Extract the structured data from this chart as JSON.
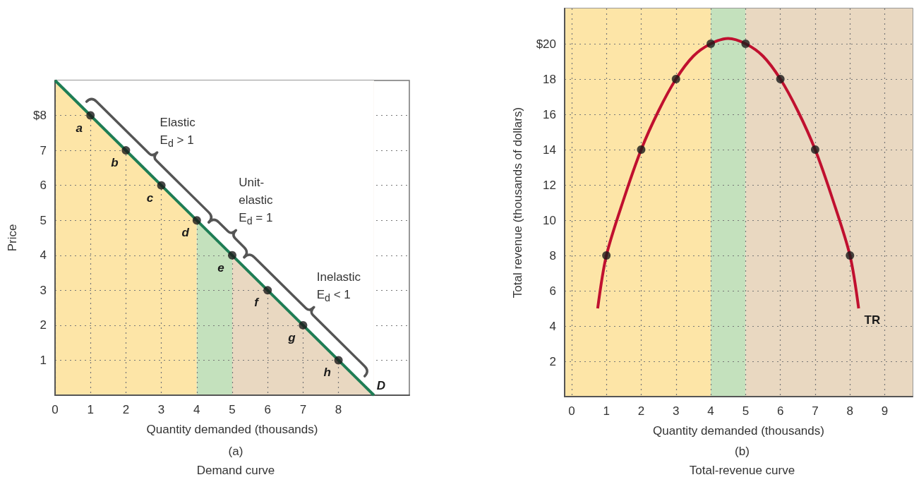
{
  "chart_data": [
    {
      "type": "area",
      "title": "(a)",
      "subtitle": "Demand curve",
      "xlabel": "Quantity demanded (thousands)",
      "ylabel": "Price",
      "xlim": [
        0,
        10
      ],
      "ylim": [
        0,
        9
      ],
      "xticks": [
        0,
        1,
        2,
        3,
        4,
        5,
        6,
        7,
        8
      ],
      "yticks": [
        1,
        2,
        3,
        4,
        5,
        6,
        7,
        {
          "value": 8,
          "label": "$8"
        }
      ],
      "grid": true,
      "series": [
        {
          "name": "D",
          "color": "#1e7d55",
          "x": [
            0,
            9
          ],
          "values": [
            9,
            0
          ]
        },
        {
          "type": "scatter",
          "color": "#1a1a1a",
          "x": [
            1,
            2,
            3,
            4,
            5,
            6,
            7,
            8
          ],
          "values": [
            8,
            7,
            6,
            5,
            4,
            3,
            2,
            1
          ]
        }
      ],
      "bands": [
        {
          "axis": "x",
          "from": 0,
          "to": 4,
          "label": "Elastic\nE$_{d}$ > 1",
          "color": "#fde5a7"
        },
        {
          "axis": "x",
          "from": 4,
          "to": 5,
          "label": "Unit-\nelastic\nE$_{d}$ = 1",
          "color": "#c4e1bd"
        },
        {
          "axis": "x",
          "from": 5,
          "to": 9,
          "label": "Inelastic\nE$_{d}$ < 1",
          "color": "#e9d8c1"
        }
      ],
      "annotations": [
        {
          "text": "a",
          "x": 1,
          "y": 8
        },
        {
          "text": "b",
          "x": 2,
          "y": 7
        },
        {
          "text": "c",
          "x": 3,
          "y": 6
        },
        {
          "text": "d",
          "x": 4,
          "y": 5
        },
        {
          "text": "e",
          "x": 5,
          "y": 4
        },
        {
          "text": "f",
          "x": 6,
          "y": 3
        },
        {
          "text": "g",
          "x": 7,
          "y": 2
        },
        {
          "text": "h",
          "x": 8,
          "y": 1
        }
      ]
    },
    {
      "type": "line",
      "title": "(b)",
      "subtitle": "Total-revenue curve",
      "xlabel": "Quantity demanded (thousands)",
      "ylabel": "Total revenue (thousands of dollars)",
      "xlim": [
        -0.2,
        9.8
      ],
      "ylim": [
        0,
        22
      ],
      "xticks": [
        0,
        1,
        2,
        3,
        4,
        5,
        6,
        7,
        8,
        9
      ],
      "yticks": [
        2,
        4,
        6,
        8,
        10,
        12,
        14,
        16,
        18,
        {
          "value": 20,
          "label": "$20"
        }
      ],
      "grid": true,
      "series": [
        {
          "name": "TR",
          "color": "#c0102f",
          "x": [
            0.75,
            1,
            1.5,
            2,
            2.5,
            3,
            3.5,
            4,
            4.5,
            5,
            5.5,
            6,
            6.5,
            7,
            7.5,
            8,
            8.25
          ],
          "values": [
            5,
            8,
            11.2,
            14,
            16.2,
            18,
            19.3,
            20,
            20.3,
            20,
            19.3,
            18,
            16.2,
            14,
            11.2,
            8,
            5
          ]
        },
        {
          "type": "scatter",
          "color": "#1a1a1a",
          "x": [
            1,
            2,
            3,
            4,
            5,
            6,
            7,
            8
          ],
          "values": [
            8,
            14,
            18,
            20,
            20,
            18,
            14,
            8
          ]
        }
      ],
      "bands": [
        {
          "axis": "x",
          "from": -0.2,
          "to": 4,
          "color": "#fde5a7"
        },
        {
          "axis": "x",
          "from": 4,
          "to": 5,
          "color": "#c4e1bd"
        },
        {
          "axis": "x",
          "from": 5,
          "to": 9.8,
          "color": "#e9d8c1"
        }
      ]
    }
  ]
}
